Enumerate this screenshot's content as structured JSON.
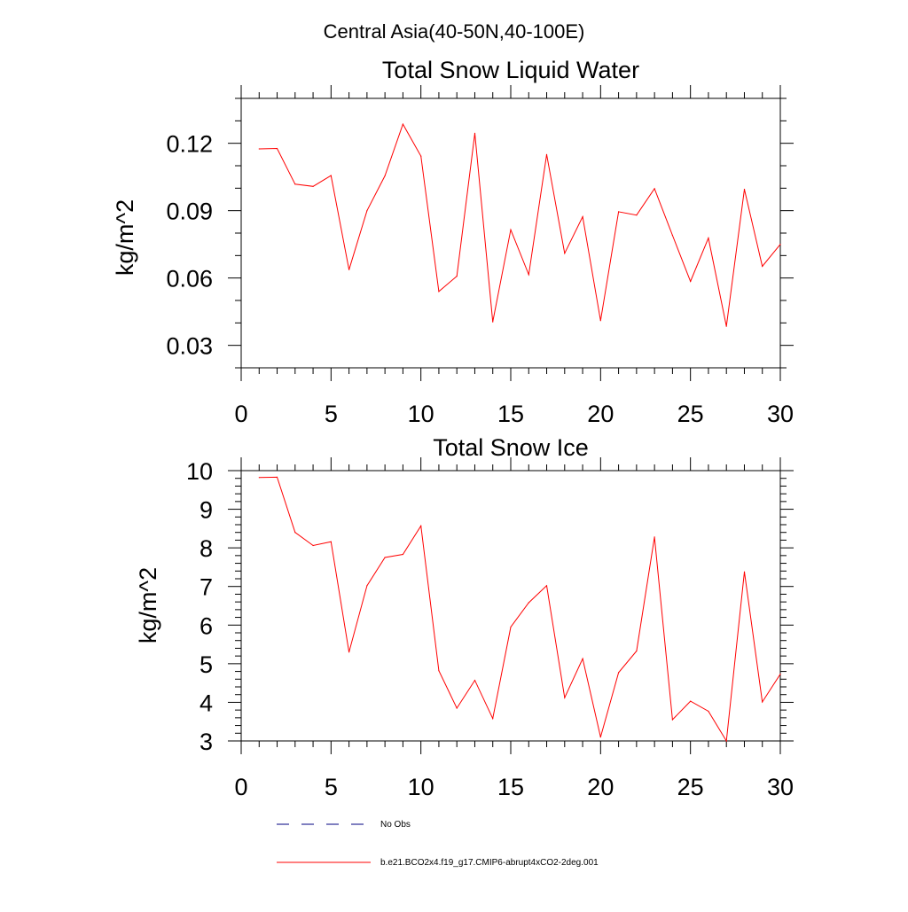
{
  "main_title": "Central Asia(40-50N,40-100E)",
  "legend": {
    "entries": [
      {
        "label": "No Obs",
        "color": "#000080",
        "style": "dashed"
      },
      {
        "label": "b.e21.BCO2x4.f19_g17.CMIP6-abrupt4xCO2-2deg.001",
        "color": "#ff0000",
        "style": "solid"
      }
    ]
  },
  "chart_data": [
    {
      "type": "line",
      "title": "Total Snow Liquid Water",
      "xlabel": "",
      "ylabel": "kg/m^2",
      "xlim": [
        0,
        30
      ],
      "ylim": [
        0.02,
        0.14
      ],
      "xticks": [
        0,
        5,
        10,
        15,
        20,
        25,
        30
      ],
      "yticks": [
        0.03,
        0.06,
        0.09,
        0.12
      ],
      "ytick_labels": [
        "0.03",
        "0.06",
        "0.09",
        "0.12"
      ],
      "xtick_labels": [
        "0",
        "5",
        "10",
        "15",
        "20",
        "25",
        "30"
      ],
      "series": [
        {
          "name": "b.e21.BCO2x4.f19_g17.CMIP6-abrupt4xCO2-2deg.001",
          "color": "#ff0000",
          "x": [
            1,
            2,
            3,
            4,
            5,
            6,
            7,
            8,
            9,
            10,
            11,
            12,
            13,
            14,
            15,
            16,
            17,
            18,
            19,
            20,
            21,
            22,
            23,
            24,
            25,
            26,
            27,
            28,
            29,
            30
          ],
          "values": [
            0.1175,
            0.1177,
            0.1018,
            0.1008,
            0.1056,
            0.0637,
            0.09,
            0.1055,
            0.1285,
            0.1143,
            0.054,
            0.0608,
            0.1245,
            0.0405,
            0.0815,
            0.0615,
            0.115,
            0.071,
            0.0873,
            0.041,
            0.0895,
            0.088,
            0.0998,
            0.079,
            0.0585,
            0.0778,
            0.0385,
            0.0995,
            0.0652,
            0.075
          ]
        }
      ]
    },
    {
      "type": "line",
      "title": "Total Snow Ice",
      "xlabel": "",
      "ylabel": "kg/m^2",
      "xlim": [
        0,
        30
      ],
      "ylim": [
        3,
        10
      ],
      "xticks": [
        0,
        5,
        10,
        15,
        20,
        25,
        30
      ],
      "yticks": [
        3,
        4,
        5,
        6,
        7,
        8,
        9,
        10
      ],
      "ytick_labels": [
        "3",
        "4",
        "5",
        "6",
        "7",
        "8",
        "9",
        "10"
      ],
      "xtick_labels": [
        "0",
        "5",
        "10",
        "15",
        "20",
        "25",
        "30"
      ],
      "series": [
        {
          "name": "b.e21.BCO2x4.f19_g17.CMIP6-abrupt4xCO2-2deg.001",
          "color": "#ff0000",
          "x": [
            1,
            2,
            3,
            4,
            5,
            6,
            7,
            8,
            9,
            10,
            11,
            12,
            13,
            14,
            15,
            16,
            17,
            18,
            19,
            20,
            21,
            22,
            23,
            24,
            25,
            26,
            27,
            28,
            29,
            30
          ],
          "values": [
            9.82,
            9.83,
            8.4,
            8.06,
            8.16,
            5.3,
            7.02,
            7.75,
            7.83,
            8.57,
            4.82,
            3.85,
            4.57,
            3.58,
            5.95,
            6.58,
            7.02,
            4.12,
            5.13,
            3.1,
            4.77,
            5.33,
            8.28,
            3.55,
            4.03,
            3.77,
            3.0,
            7.38,
            4.01,
            4.73
          ]
        }
      ]
    }
  ]
}
